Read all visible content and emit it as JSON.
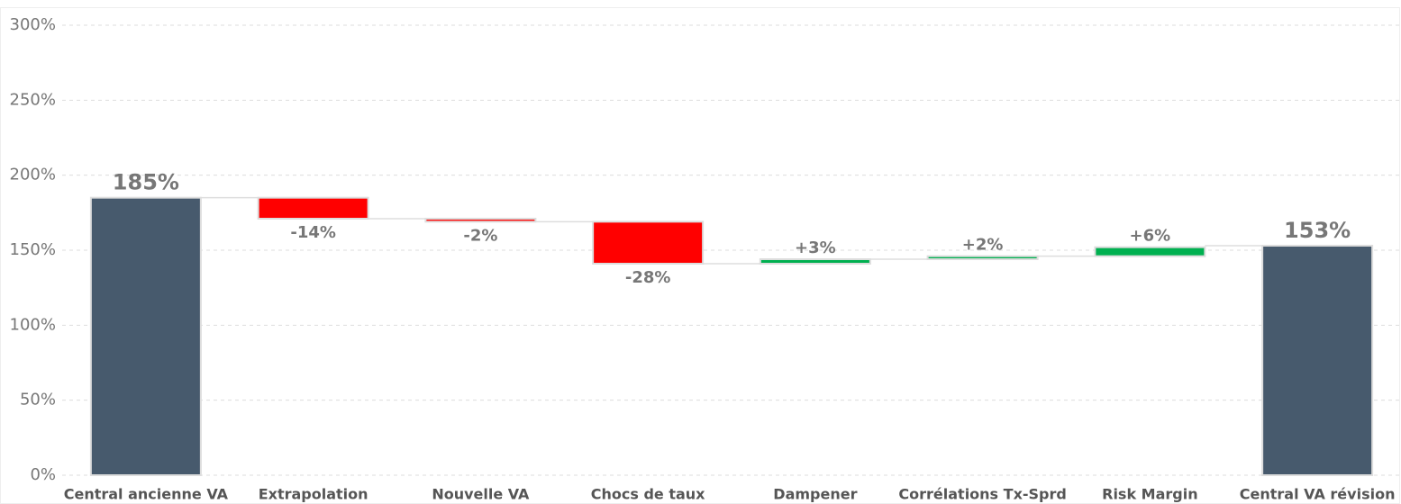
{
  "chart_data": {
    "type": "waterfall",
    "categories": [
      "Central ancienne VA",
      "Extrapolation",
      "Nouvelle VA",
      "Chocs de taux",
      "Dampener",
      "Corrélations Tx-Sprd",
      "Risk Margin",
      "Central VA révision"
    ],
    "values": [
      185,
      -14,
      -2,
      -28,
      3,
      2,
      6,
      153
    ],
    "value_labels": [
      "185%",
      "-14%",
      "-2%",
      "-28%",
      "+3%",
      "+2%",
      "+6%",
      "153%"
    ],
    "colors": {
      "total": "#475a6d",
      "increase": "#00b050",
      "decrease": "#ff0000"
    },
    "ylim": [
      0,
      300
    ],
    "yticks": [
      {
        "value": 0,
        "label": "0%"
      },
      {
        "value": 50,
        "label": "50%"
      },
      {
        "value": 100,
        "label": "100%"
      },
      {
        "value": 150,
        "label": "150%"
      },
      {
        "value": 200,
        "label": "200%"
      },
      {
        "value": 250,
        "label": "250%"
      },
      {
        "value": 300,
        "label": "300%"
      }
    ],
    "grid": true
  }
}
